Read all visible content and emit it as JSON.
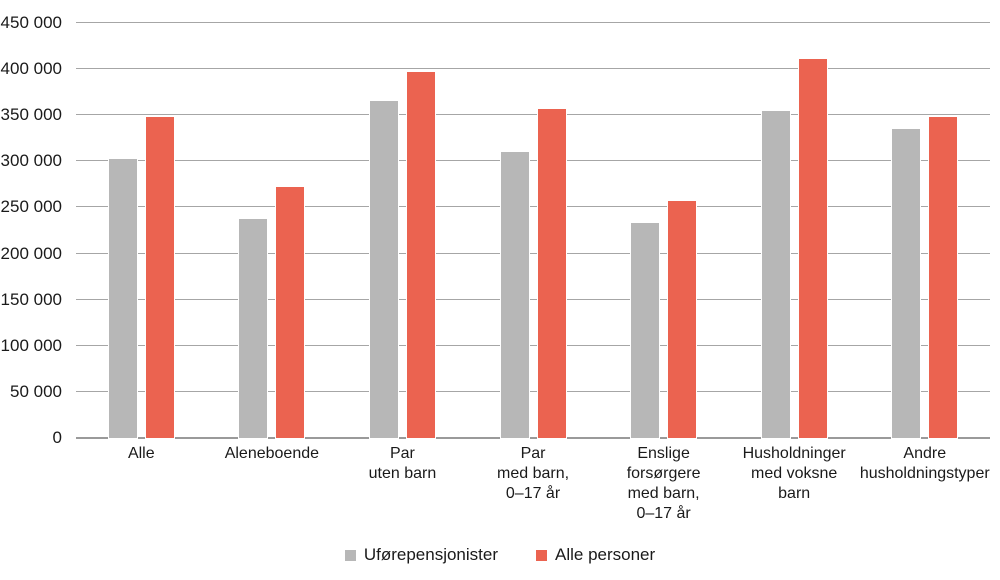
{
  "chart_data": {
    "type": "bar",
    "categories": [
      [
        "Alle"
      ],
      [
        "Aleneboende"
      ],
      [
        "Par",
        "uten barn"
      ],
      [
        "Par",
        "med barn,",
        "0–17 år"
      ],
      [
        "Enslige",
        "forsørgere",
        "med barn,",
        "0–17 år"
      ],
      [
        "Husholdninger",
        "med voksne",
        "barn"
      ],
      [
        "Andre",
        "husholdningstyper"
      ]
    ],
    "series": [
      {
        "name": "Uførepensjonister",
        "color": "#b7b7b7",
        "values": [
          303000,
          238000,
          365000,
          310000,
          233000,
          355000,
          335000
        ]
      },
      {
        "name": "Alle personer",
        "color": "#eb6350",
        "values": [
          348000,
          272000,
          397000,
          357000,
          257000,
          411000,
          348000
        ]
      }
    ],
    "title": "",
    "xlabel": "",
    "ylabel": "",
    "ylim": [
      0,
      450000
    ],
    "ytick_step": 50000,
    "ytick_labels": [
      "0",
      "50 000",
      "100 000",
      "150 000",
      "200 000",
      "250 000",
      "300 000",
      "350 000",
      "400 000",
      "450 000"
    ],
    "grid": true,
    "legend_position": "bottom",
    "colors": {
      "gridline": "#a6a6a6",
      "axis_line": "#9a9a9a",
      "text": "#1a1a1a",
      "background": "#ffffff"
    }
  }
}
